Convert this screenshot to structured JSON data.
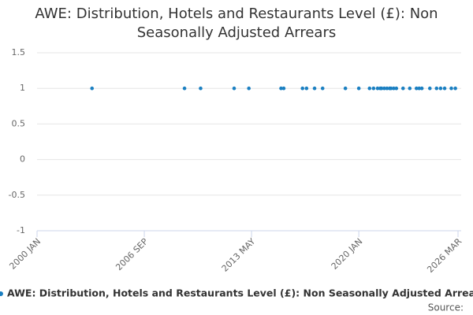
{
  "chart_data": {
    "type": "scatter",
    "title": "AWE: Distribution, Hotels and Restaurants Level (£): Non Seasonally Adjusted Arrears",
    "source_label": "Source:",
    "x": [
      "2003 JUN",
      "2009 MAR",
      "2010 MAR",
      "2012 APR",
      "2013 MAR",
      "2015 MAR",
      "2015 MAY",
      "2016 JUL",
      "2016 OCT",
      "2017 APR",
      "2017 OCT",
      "2019 MAR",
      "2020 JAN",
      "2020 SEP",
      "2020 DEC",
      "2021 MAR",
      "2021 MAY",
      "2021 JUN",
      "2021 AUG",
      "2021 OCT",
      "2021 DEC",
      "2022 JAN",
      "2022 MAR",
      "2022 MAY",
      "2022 OCT",
      "2023 MAR",
      "2023 AUG",
      "2023 OCT",
      "2023 DEC",
      "2024 JUN",
      "2024 NOV",
      "2025 FEB",
      "2025 MAY",
      "2025 OCT",
      "2026 JAN"
    ],
    "series": [
      {
        "name": "AWE: Distribution, Hotels and Restaurants Level (£): Non Seasonally Adjusted Arrears",
        "color": "#1a7fc1",
        "values": [
          1,
          1,
          1,
          1,
          1,
          1,
          1,
          1,
          1,
          1,
          1,
          1,
          1,
          1,
          1,
          1,
          1,
          1,
          1,
          1,
          1,
          1,
          1,
          1,
          1,
          1,
          1,
          1,
          1,
          1,
          1,
          1,
          1,
          1,
          1
        ]
      }
    ],
    "xlim": [
      "2000 JAN",
      "2026 MAR"
    ],
    "xticks": [
      "2000 JAN",
      "2006 SEP",
      "2013 MAY",
      "2020 JAN",
      "2026 MAR"
    ],
    "ylim": [
      -1,
      1.5
    ],
    "yticks": [
      -1,
      -0.5,
      0,
      0.5,
      1,
      1.5
    ],
    "grid": true
  }
}
